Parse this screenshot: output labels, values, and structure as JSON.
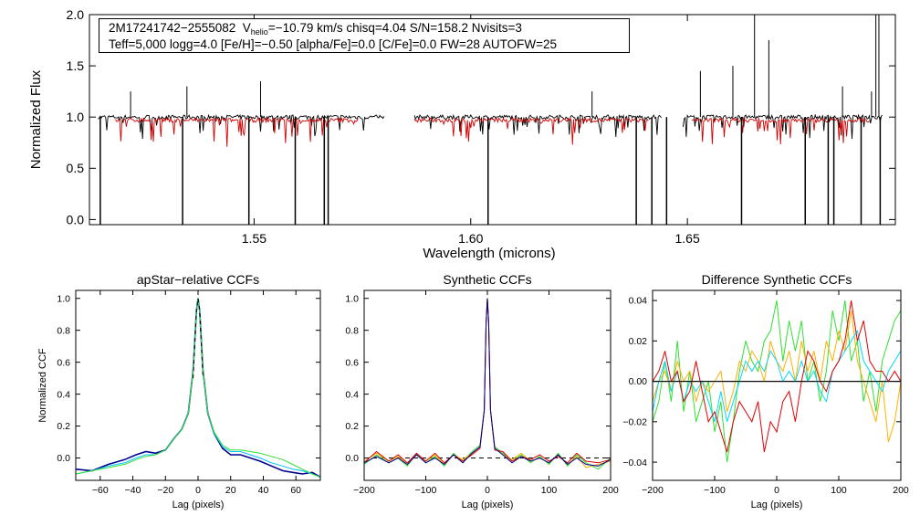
{
  "chart_data": [
    {
      "type": "line",
      "title": "",
      "xlabel": "Wavelength (microns)",
      "ylabel": "Normalized Flux",
      "xlim": [
        1.512,
        1.698
      ],
      "ylim": [
        -0.05,
        2.0
      ],
      "xticks": [
        1.55,
        1.6,
        1.65
      ],
      "xtick_labels": [
        "1.55",
        "1.60",
        "1.65"
      ],
      "yticks": [
        0.0,
        0.5,
        1.0,
        1.5,
        2.0
      ],
      "ytick_labels": [
        "0.0",
        "0.5",
        "1.0",
        "1.5",
        "2.0"
      ],
      "info": {
        "star_id": "2M17241742−2555082",
        "v_letter": "V",
        "v_sub": "helio",
        "v_rest": "=−10.79 km/s  chisq=4.04  S/N=158.2  Nvisits=3",
        "line2": "Teff=5,000 logg=4.0 [Fe/H]=−0.50 [alpha/Fe]=0.0 [C/Fe]=0.0 FW=28 AUTOFW=25"
      },
      "series": [
        {
          "color": "#000000",
          "chips": [
            [
              1.514,
              1.58
            ],
            [
              1.587,
              1.644
            ],
            [
              1.649,
              1.695
            ]
          ],
          "continuum": 1.0
        },
        {
          "color": "#d00000",
          "chips": [
            [
              1.518,
              1.574
            ],
            [
              1.587,
              1.641
            ],
            [
              1.651,
              1.692
            ]
          ],
          "continuum": 0.97
        }
      ],
      "spikes_down": [
        1.5145,
        1.5335,
        1.5488,
        1.5595,
        1.5662,
        1.5671,
        1.604,
        1.6382,
        1.6418,
        1.6452,
        1.6625,
        1.6772,
        1.6825,
        1.6838,
        1.6901,
        1.6945
      ],
      "spikes_up": [
        [
          1.6655,
          2.0
        ],
        [
          1.6688,
          1.75
        ],
        [
          1.6935,
          2.0
        ],
        [
          1.6942,
          2.0
        ],
        [
          1.653,
          1.45
        ],
        [
          1.6605,
          1.5
        ],
        [
          1.6858,
          1.3
        ],
        [
          1.6925,
          1.25
        ],
        [
          1.5515,
          1.35
        ],
        [
          1.5345,
          1.3
        ],
        [
          1.5215,
          1.25
        ],
        [
          1.628,
          1.25
        ]
      ]
    },
    {
      "type": "line",
      "title": "apStar−relative CCFs",
      "xlabel": "Lag (pixels)",
      "ylabel": "Normalized CCF",
      "xlim": [
        -75,
        75
      ],
      "ylim": [
        -0.14,
        1.05
      ],
      "xticks": [
        -60,
        -40,
        -20,
        0,
        20,
        40,
        60
      ],
      "xtick_labels": [
        "−60",
        "−40",
        "−20",
        "0",
        "20",
        "40",
        "60"
      ],
      "yticks": [
        0.0,
        0.2,
        0.4,
        0.6,
        0.8,
        1.0
      ],
      "ytick_labels": [
        "0.0",
        "0.2",
        "0.4",
        "0.6",
        "0.8",
        "1.0"
      ],
      "series": [
        {
          "color": "#000090",
          "width": 1.6,
          "x": [
            -75,
            -65,
            -55,
            -45,
            -38,
            -32,
            -26,
            -20,
            -15,
            -10,
            -6,
            -3,
            -1,
            0,
            1,
            3,
            6,
            10,
            15,
            20,
            26,
            32,
            38,
            45,
            52,
            58,
            64,
            70,
            75
          ],
          "y": [
            -0.07,
            -0.08,
            -0.04,
            -0.01,
            0.02,
            0.04,
            0.03,
            0.05,
            0.12,
            0.18,
            0.28,
            0.55,
            0.92,
            1.0,
            0.92,
            0.55,
            0.28,
            0.15,
            0.06,
            0.02,
            0.02,
            0.0,
            -0.02,
            -0.05,
            -0.08,
            -0.09,
            -0.1,
            -0.09,
            -0.12
          ]
        },
        {
          "color": "#00c0ff",
          "width": 1,
          "x": [
            -75,
            -65,
            -55,
            -45,
            -38,
            -32,
            -26,
            -20,
            -15,
            -10,
            -6,
            -3,
            -1,
            0,
            1,
            3,
            6,
            10,
            15,
            20,
            26,
            32,
            38,
            45,
            52,
            58,
            64,
            70,
            75
          ],
          "y": [
            -0.1,
            -0.08,
            -0.05,
            -0.03,
            0.0,
            0.02,
            0.02,
            0.05,
            0.12,
            0.18,
            0.28,
            0.55,
            0.92,
            1.0,
            0.92,
            0.55,
            0.28,
            0.15,
            0.07,
            0.04,
            0.04,
            0.02,
            0.0,
            -0.03,
            -0.05,
            -0.07,
            -0.08,
            -0.1,
            -0.12
          ]
        },
        {
          "color": "#30e030",
          "width": 1,
          "x": [
            -75,
            -65,
            -55,
            -45,
            -38,
            -32,
            -26,
            -20,
            -15,
            -10,
            -6,
            -3,
            -1,
            0,
            1,
            3,
            6,
            10,
            15,
            20,
            26,
            32,
            38,
            45,
            52,
            58,
            64,
            70,
            75
          ],
          "y": [
            -0.1,
            -0.08,
            -0.06,
            -0.04,
            -0.01,
            0.01,
            0.02,
            0.05,
            0.12,
            0.18,
            0.28,
            0.55,
            0.92,
            1.0,
            0.92,
            0.55,
            0.28,
            0.16,
            0.08,
            0.05,
            0.05,
            0.04,
            0.03,
            0.01,
            -0.01,
            -0.04,
            -0.07,
            -0.1,
            -0.12
          ]
        },
        {
          "color": "#000000",
          "width": 1,
          "dash": "4,4",
          "x": [
            -3,
            -1,
            0,
            1,
            3
          ],
          "y": [
            0.5,
            0.92,
            1.0,
            0.92,
            0.5
          ]
        }
      ]
    },
    {
      "type": "line",
      "title": "Synthetic CCFs",
      "xlabel": "Lag (pixels)",
      "ylabel": "",
      "xlim": [
        -200,
        200
      ],
      "ylim": [
        -0.14,
        1.05
      ],
      "xticks": [
        -200,
        -100,
        0,
        100,
        200
      ],
      "xtick_labels": [
        "−200",
        "−100",
        "0",
        "100",
        "200"
      ],
      "yticks": [
        0.0,
        0.2,
        0.4,
        0.6,
        0.8,
        1.0
      ],
      "ytick_labels": [
        "0.0",
        "0.2",
        "0.4",
        "0.6",
        "0.8",
        "1.0"
      ],
      "hline": 0.0,
      "series": [
        {
          "color": "#30e030",
          "width": 1,
          "x": [
            -200,
            -180,
            -160,
            -145,
            -130,
            -115,
            -100,
            -85,
            -70,
            -55,
            -40,
            -25,
            -12,
            -5,
            -2,
            0,
            2,
            5,
            12,
            25,
            40,
            55,
            70,
            85,
            100,
            115,
            130,
            145,
            160,
            180,
            200
          ],
          "y": [
            -0.04,
            0.02,
            -0.03,
            0.0,
            -0.05,
            0.03,
            -0.03,
            0.01,
            -0.05,
            0.03,
            -0.02,
            0.04,
            0.08,
            0.3,
            0.85,
            1.0,
            0.85,
            0.3,
            0.07,
            0.03,
            -0.02,
            0.02,
            -0.03,
            0.01,
            -0.04,
            0.03,
            -0.05,
            0.02,
            -0.03,
            -0.07,
            0.0
          ]
        },
        {
          "color": "#ffb000",
          "width": 1,
          "x": [
            -200,
            -180,
            -160,
            -145,
            -130,
            -115,
            -100,
            -85,
            -70,
            -55,
            -40,
            -25,
            -12,
            -5,
            -2,
            0,
            2,
            5,
            12,
            25,
            40,
            55,
            70,
            85,
            100,
            115,
            130,
            145,
            160,
            180,
            200
          ],
          "y": [
            -0.02,
            0.03,
            -0.02,
            0.01,
            -0.04,
            0.02,
            -0.02,
            0.02,
            -0.04,
            0.02,
            -0.01,
            0.03,
            0.07,
            0.3,
            0.85,
            1.0,
            0.85,
            0.3,
            0.06,
            0.02,
            -0.01,
            0.03,
            -0.02,
            0.0,
            -0.03,
            0.02,
            -0.04,
            0.01,
            -0.06,
            -0.04,
            -0.02
          ]
        },
        {
          "color": "#e00000",
          "width": 1,
          "x": [
            -200,
            -180,
            -160,
            -145,
            -130,
            -115,
            -100,
            -85,
            -70,
            -55,
            -40,
            -25,
            -12,
            -5,
            -2,
            0,
            2,
            5,
            12,
            25,
            40,
            55,
            70,
            85,
            100,
            115,
            130,
            145,
            160,
            180,
            200
          ],
          "y": [
            -0.03,
            0.04,
            -0.02,
            0.02,
            -0.03,
            0.03,
            -0.02,
            0.03,
            -0.03,
            0.02,
            -0.02,
            0.02,
            0.06,
            0.3,
            0.85,
            1.0,
            0.85,
            0.3,
            0.05,
            0.04,
            -0.02,
            0.01,
            -0.01,
            0.02,
            -0.02,
            0.01,
            -0.03,
            0.03,
            -0.02,
            -0.03,
            -0.01
          ]
        },
        {
          "color": "#000090",
          "width": 1,
          "x": [
            -200,
            -180,
            -160,
            -145,
            -130,
            -115,
            -100,
            -85,
            -70,
            -55,
            -40,
            -25,
            -12,
            -5,
            -2,
            0,
            2,
            5,
            12,
            25,
            40,
            55,
            70,
            85,
            100,
            115,
            130,
            145,
            160,
            180,
            200
          ],
          "y": [
            -0.03,
            0.01,
            -0.03,
            0.0,
            -0.04,
            0.02,
            -0.03,
            0.0,
            -0.04,
            0.02,
            -0.03,
            0.03,
            0.07,
            0.3,
            0.85,
            1.0,
            0.85,
            0.3,
            0.06,
            0.02,
            -0.03,
            0.01,
            -0.02,
            0.0,
            -0.03,
            0.02,
            -0.04,
            0.0,
            -0.04,
            -0.05,
            -0.01
          ]
        }
      ]
    },
    {
      "type": "line",
      "title": "Difference Synthetic CCFs",
      "xlabel": "Lag (pixels)",
      "ylabel": "",
      "xlim": [
        -200,
        200
      ],
      "ylim": [
        -0.049,
        0.045
      ],
      "xticks": [
        -200,
        -100,
        0,
        100,
        200
      ],
      "xtick_labels": [
        "−200",
        "−100",
        "0",
        "100",
        "200"
      ],
      "yticks": [
        -0.04,
        -0.02,
        0.0,
        0.02,
        0.04
      ],
      "ytick_labels": [
        "−0.04",
        "−0.02",
        "0.00",
        "0.02",
        "0.04"
      ],
      "hline": 0.0,
      "series": [
        {
          "color": "#30e030",
          "width": 1,
          "x": [
            -200,
            -190,
            -180,
            -170,
            -160,
            -150,
            -140,
            -130,
            -120,
            -110,
            -100,
            -90,
            -80,
            -70,
            -60,
            -50,
            -40,
            -30,
            -20,
            -10,
            0,
            10,
            20,
            30,
            40,
            50,
            60,
            70,
            80,
            90,
            100,
            110,
            120,
            130,
            140,
            150,
            160,
            170,
            180,
            190,
            200
          ],
          "y": [
            -0.02,
            -0.01,
            0.01,
            -0.01,
            0.02,
            -0.015,
            0.005,
            -0.02,
            -0.01,
            0.0,
            -0.025,
            -0.01,
            -0.04,
            -0.02,
            0.005,
            0.02,
            0.01,
            0.005,
            0.02,
            0.025,
            0.04,
            0.01,
            0.03,
            0.015,
            0.03,
            0.0,
            0.01,
            -0.01,
            0.005,
            0.035,
            0.02,
            0.04,
            0.01,
            0.02,
            -0.01,
            0.005,
            -0.015,
            0.01,
            0.02,
            0.03,
            0.035
          ]
        },
        {
          "color": "#ffb000",
          "width": 1,
          "x": [
            -200,
            -190,
            -180,
            -170,
            -160,
            -150,
            -140,
            -130,
            -120,
            -110,
            -100,
            -90,
            -80,
            -70,
            -60,
            -50,
            -40,
            -30,
            -20,
            -10,
            0,
            10,
            20,
            30,
            40,
            50,
            60,
            70,
            80,
            90,
            100,
            110,
            120,
            130,
            140,
            150,
            160,
            170,
            180,
            190,
            200
          ],
          "y": [
            -0.01,
            0.0,
            0.005,
            -0.005,
            0.01,
            0.0,
            0.005,
            -0.01,
            0.0,
            -0.005,
            0.0,
            0.005,
            -0.015,
            -0.005,
            0.01,
            0.005,
            0.015,
            0.01,
            0.0,
            0.02,
            0.01,
            0.005,
            0.015,
            0.0,
            0.02,
            0.005,
            0.015,
            0.0,
            0.02,
            0.01,
            0.025,
            0.015,
            0.035,
            0.01,
            0.0,
            -0.01,
            -0.02,
            0.0,
            -0.03,
            -0.02,
            0.0
          ]
        },
        {
          "color": "#00d8ff",
          "width": 1,
          "x": [
            -200,
            -190,
            -180,
            -170,
            -160,
            -150,
            -140,
            -130,
            -120,
            -110,
            -100,
            -90,
            -80,
            -70,
            -60,
            -50,
            -40,
            -30,
            -20,
            -10,
            0,
            10,
            20,
            30,
            40,
            50,
            60,
            70,
            80,
            90,
            100,
            110,
            120,
            130,
            140,
            150,
            160,
            170,
            180,
            190,
            200
          ],
          "y": [
            -0.015,
            0.0,
            0.01,
            -0.005,
            0.005,
            -0.01,
            0.0,
            -0.005,
            0.0,
            -0.01,
            -0.02,
            -0.005,
            -0.02,
            -0.01,
            0.0,
            0.01,
            0.005,
            0.01,
            0.005,
            0.015,
            0.01,
            0.0,
            0.005,
            0.0,
            0.01,
            0.0,
            0.005,
            -0.005,
            -0.01,
            0.005,
            0.01,
            0.015,
            0.02,
            0.025,
            0.01,
            0.005,
            0.0,
            -0.005,
            0.005,
            0.01,
            0.015
          ]
        },
        {
          "color": "#e00000",
          "width": 1,
          "x": [
            -200,
            -190,
            -180,
            -170,
            -160,
            -150,
            -140,
            -130,
            -120,
            -110,
            -100,
            -90,
            -80,
            -70,
            -60,
            -50,
            -40,
            -30,
            -20,
            -10,
            0,
            10,
            20,
            30,
            40,
            50,
            60,
            70,
            80,
            90,
            100,
            110,
            120,
            130,
            140,
            150,
            160,
            170,
            180,
            190,
            200
          ],
          "y": [
            0.0,
            0.005,
            0.015,
            0.0,
            0.005,
            -0.01,
            -0.005,
            0.01,
            -0.005,
            -0.02,
            -0.015,
            -0.025,
            -0.035,
            -0.02,
            -0.01,
            -0.015,
            -0.02,
            -0.01,
            -0.035,
            -0.02,
            -0.025,
            -0.01,
            -0.005,
            -0.02,
            0.0,
            0.015,
            0.01,
            0.0,
            -0.005,
            0.005,
            0.01,
            0.02,
            0.04,
            0.02,
            0.03,
            0.01,
            0.005,
            0.005,
            0.0,
            0.005,
            0.0
          ]
        },
        {
          "color": "#000000",
          "width": 1,
          "x": [
            -200,
            200
          ],
          "y": [
            0.0,
            0.0
          ]
        }
      ]
    }
  ]
}
